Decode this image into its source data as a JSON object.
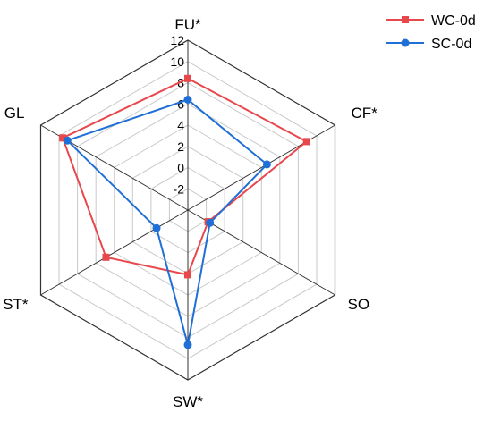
{
  "chart_data": {
    "type": "radar",
    "axes": [
      "FU*",
      "CF*",
      "SO",
      "SW*",
      "ST*",
      "GL"
    ],
    "range": [
      -4,
      12
    ],
    "ticks": [
      "12",
      "10",
      "8",
      "6",
      "4",
      "2",
      "0",
      "-2"
    ],
    "tick_values": [
      12,
      10,
      8,
      6,
      4,
      2,
      0,
      -2
    ],
    "grid": true,
    "legend_position": "top-right",
    "series": [
      {
        "name": "WC-0d",
        "color": "#e8474c",
        "marker": "square",
        "values": [
          8.4,
          8.9,
          -1.8,
          2.1,
          4.9,
          9.6
        ]
      },
      {
        "name": "SC-0d",
        "color": "#1f6fd6",
        "marker": "circle",
        "values": [
          6.4,
          4.6,
          -1.6,
          8.7,
          -0.6,
          9.1
        ]
      }
    ]
  }
}
